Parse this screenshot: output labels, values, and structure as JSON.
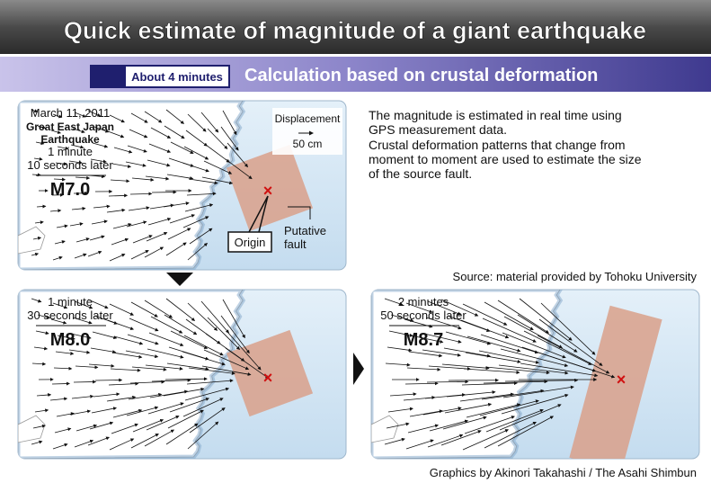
{
  "header": {
    "title": "Quick estimate of magnitude of a giant earthquake",
    "badge": "About 4 minutes",
    "subtitle": "Calculation based on crustal deformation"
  },
  "panels": [
    {
      "date": "March 11, 2011",
      "event": [
        "Great East Japan",
        "Earthquake"
      ],
      "time": [
        "1 minute",
        "10 seconds later"
      ],
      "magnitude": "M7.0",
      "legend_title": "Displacement",
      "legend_scale": "50 cm",
      "origin": "Origin",
      "fault": [
        "Putative",
        "fault"
      ]
    },
    {
      "time": [
        "1 minute",
        "30 seconds later"
      ],
      "magnitude": "M8.0"
    },
    {
      "time": [
        "2 minutes",
        "50 seconds later"
      ],
      "magnitude": "M8.7"
    }
  ],
  "description": [
    "The magnitude is estimated in real time using",
    "GPS measurement data.",
    "Crustal deformation patterns that change from",
    "moment to moment are used to estimate the size",
    "of the source fault."
  ],
  "source": "Source: material provided by Tohoku University",
  "credit": "Graphics by Akinori Takahashi / The Asahi Shimbun"
}
